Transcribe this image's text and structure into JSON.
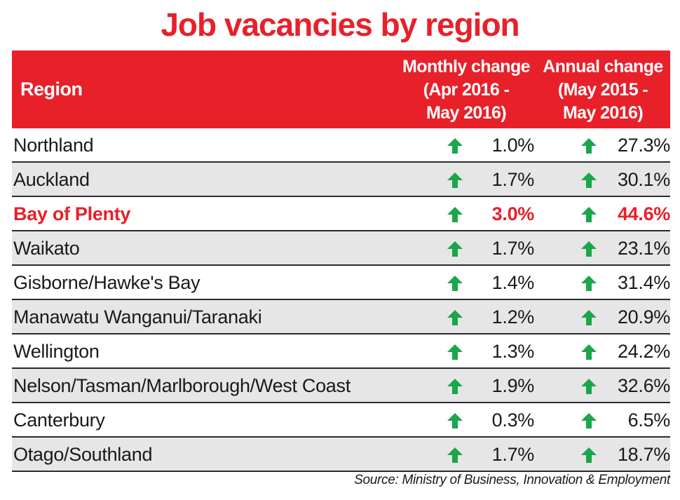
{
  "title": "Job vacancies by region",
  "colors": {
    "accent": "#e8202a",
    "arrow": "#1aa64a",
    "shaded_row": "#e6e6e6"
  },
  "table": {
    "headers": {
      "region": "Region",
      "monthly": [
        "Monthly change",
        "(Apr 2016 -",
        "May 2016)"
      ],
      "annual": [
        "Annual change",
        "(May 2015 -",
        "May 2016)"
      ]
    },
    "rows": [
      {
        "region": "Northland",
        "monthly": "1.0%",
        "annual": "27.3%"
      },
      {
        "region": "Auckland",
        "monthly": "1.7%",
        "annual": "30.1%"
      },
      {
        "region": "Bay of Plenty",
        "monthly": "3.0%",
        "annual": "44.6%"
      },
      {
        "region": "Waikato",
        "monthly": "1.7%",
        "annual": "23.1%"
      },
      {
        "region": "Gisborne/Hawke's Bay",
        "monthly": "1.4%",
        "annual": "31.4%"
      },
      {
        "region": "Manawatu Wanganui/Taranaki",
        "monthly": "1.2%",
        "annual": "20.9%"
      },
      {
        "region": "Wellington",
        "monthly": "1.3%",
        "annual": "24.2%"
      },
      {
        "region": "Nelson/Tasman/Marlborough/West Coast",
        "monthly": "1.9%",
        "annual": "32.6%"
      },
      {
        "region": "Canterbury",
        "monthly": "0.3%",
        "annual": "6.5%"
      },
      {
        "region": "Otago/Southland",
        "monthly": "1.7%",
        "annual": "18.7%"
      }
    ]
  },
  "source": "Source: Ministry of Business, Innovation & Employment",
  "chart_data": {
    "type": "table",
    "title": "Job vacancies by region",
    "columns": [
      "Region",
      "Monthly change (Apr 2016 - May 2016)",
      "Annual change (May 2015 - May 2016)"
    ],
    "highlight": "Bay of Plenty",
    "direction_icon": "up-arrow-icon",
    "rows": [
      [
        "Northland",
        1.0,
        27.3
      ],
      [
        "Auckland",
        1.7,
        30.1
      ],
      [
        "Bay of Plenty",
        3.0,
        44.6
      ],
      [
        "Waikato",
        1.7,
        23.1
      ],
      [
        "Gisborne/Hawke's Bay",
        1.4,
        31.4
      ],
      [
        "Manawatu Wanganui/Taranaki",
        1.2,
        20.9
      ],
      [
        "Wellington",
        1.3,
        24.2
      ],
      [
        "Nelson/Tasman/Marlborough/West Coast",
        1.9,
        32.6
      ],
      [
        "Canterbury",
        0.3,
        6.5
      ],
      [
        "Otago/Southland",
        1.7,
        18.7
      ]
    ]
  }
}
